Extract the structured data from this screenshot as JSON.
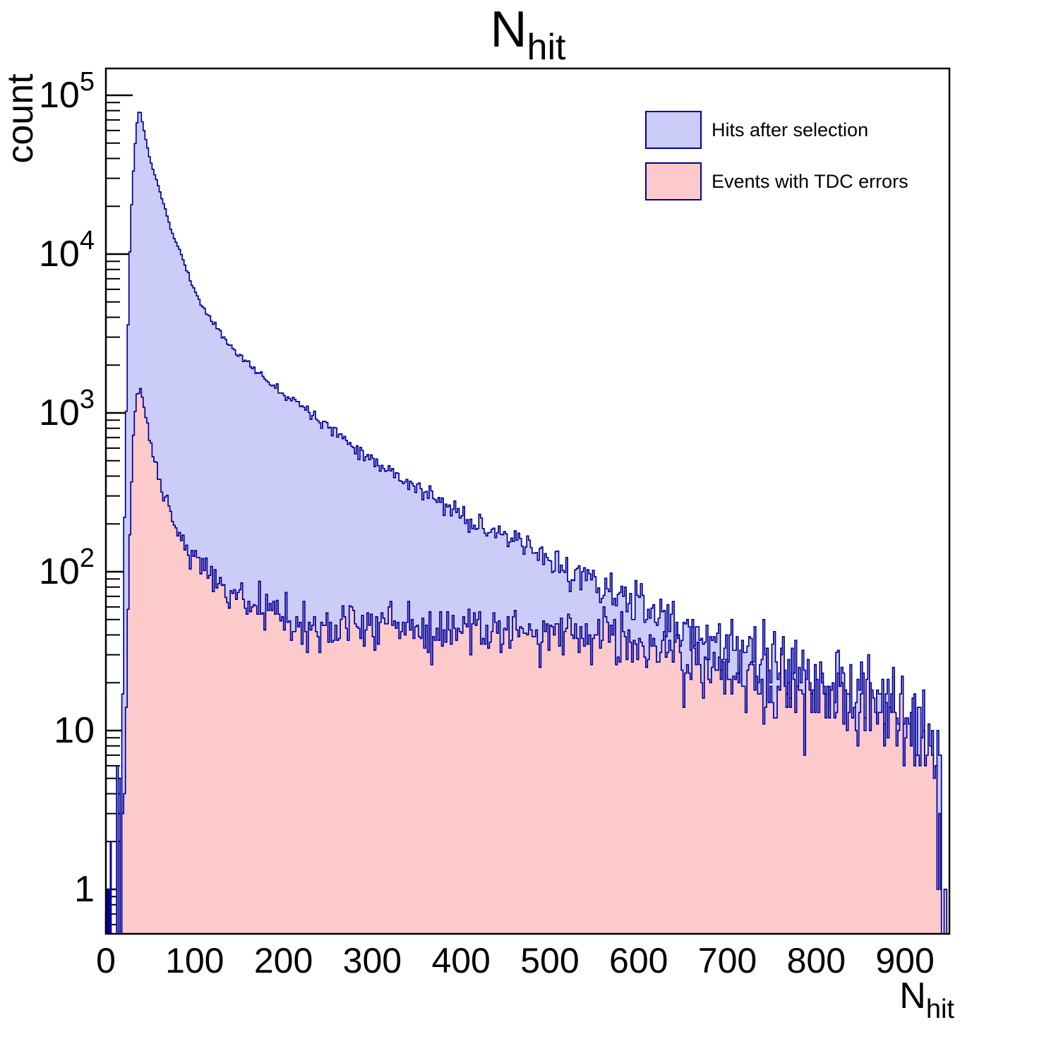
{
  "title": {
    "main": "N",
    "sub": "hit"
  },
  "axes": {
    "x": {
      "title_main": "N",
      "title_sub": "hit",
      "min": 0,
      "max": 950,
      "major_ticks": [
        0,
        100,
        200,
        300,
        400,
        500,
        600,
        700,
        800,
        900
      ]
    },
    "y": {
      "title": "count",
      "scale": "log",
      "min": 0.5,
      "max": 150000,
      "decade_exponents": [
        0,
        1,
        2,
        3,
        4,
        5
      ]
    }
  },
  "legend": {
    "items": [
      {
        "label": "Hits after selection",
        "swatch_color": "#ccccf8",
        "border_color": "#000099"
      },
      {
        "label": "Events with TDC errors",
        "swatch_color": "#fccaca",
        "border_color": "#000099"
      }
    ]
  },
  "colors": {
    "background": "#ffffff",
    "frame": "#000000",
    "hist_line": "#000099",
    "blue_fill": "#ccccf8",
    "pink_fill": "#fccaca"
  },
  "chart_data": {
    "type": "histogram",
    "title": "N_hit",
    "xlabel": "N_hit",
    "ylabel": "count",
    "x_range": [
      0,
      950
    ],
    "y_range": [
      0.5,
      150000
    ],
    "y_log": true,
    "bin_width": 2,
    "series": [
      {
        "name": "Hits after selection",
        "fill": "#ccccf8",
        "line": "#000099",
        "seed": 11,
        "noise_scale": 1.2,
        "pre_bars": [
          [
            1,
            2,
            1
          ],
          [
            3,
            4,
            1
          ],
          [
            5,
            6,
            2
          ],
          [
            12,
            14,
            6
          ],
          [
            16,
            18,
            5
          ]
        ],
        "post_bars": [
          [
            944,
            947,
            1
          ]
        ],
        "envelope": [
          [
            18,
            3
          ],
          [
            19,
            15
          ],
          [
            20,
            60
          ],
          [
            21,
            220
          ],
          [
            22,
            550
          ],
          [
            23,
            1000
          ],
          [
            24,
            1900
          ],
          [
            25,
            3600
          ],
          [
            26,
            7000
          ],
          [
            27,
            10500
          ],
          [
            28,
            15000
          ],
          [
            29,
            20500
          ],
          [
            30,
            26000
          ],
          [
            31,
            33000
          ],
          [
            32,
            41000
          ],
          [
            33,
            50000
          ],
          [
            34,
            59000
          ],
          [
            35,
            67000
          ],
          [
            36,
            74000
          ],
          [
            37,
            78000
          ],
          [
            38,
            79500
          ],
          [
            39,
            77500
          ],
          [
            40,
            73500
          ],
          [
            41,
            68500
          ],
          [
            42,
            64000
          ],
          [
            44,
            56500
          ],
          [
            46,
            49500
          ],
          [
            48,
            43500
          ],
          [
            50,
            39000
          ],
          [
            52,
            35800
          ],
          [
            54,
            33000
          ],
          [
            56,
            30400
          ],
          [
            58,
            28000
          ],
          [
            60,
            25800
          ],
          [
            62,
            23700
          ],
          [
            64,
            21700
          ],
          [
            66,
            19900
          ],
          [
            68,
            18100
          ],
          [
            70,
            16500
          ],
          [
            72,
            15100
          ],
          [
            74,
            13800
          ],
          [
            78,
            12200
          ],
          [
            82,
            11000
          ],
          [
            86,
            9600
          ],
          [
            91,
            7900
          ],
          [
            96,
            6700
          ],
          [
            101,
            5800
          ],
          [
            106,
            5000
          ],
          [
            112,
            4400
          ],
          [
            118,
            3900
          ],
          [
            124,
            3500
          ],
          [
            130,
            3150
          ],
          [
            137,
            2800
          ],
          [
            144,
            2520
          ],
          [
            152,
            2260
          ],
          [
            160,
            2050
          ],
          [
            168,
            1870
          ],
          [
            177,
            1690
          ],
          [
            186,
            1540
          ],
          [
            195,
            1410
          ],
          [
            205,
            1280
          ],
          [
            215,
            1180
          ],
          [
            226,
            1060
          ],
          [
            237,
            950
          ],
          [
            248,
            850
          ],
          [
            259,
            760
          ],
          [
            270,
            680
          ],
          [
            281,
            610
          ],
          [
            292,
            550
          ],
          [
            304,
            495
          ],
          [
            316,
            448
          ],
          [
            328,
            405
          ],
          [
            340,
            368
          ],
          [
            354,
            327
          ],
          [
            368,
            292
          ],
          [
            382,
            262
          ],
          [
            396,
            236
          ],
          [
            410,
            214
          ],
          [
            425,
            192
          ],
          [
            440,
            174
          ],
          [
            456,
            157
          ],
          [
            472,
            142
          ],
          [
            488,
            128
          ],
          [
            504,
            115
          ],
          [
            520,
            103
          ],
          [
            536,
            93
          ],
          [
            552,
            84
          ],
          [
            568,
            76
          ],
          [
            584,
            69
          ],
          [
            600,
            62
          ],
          [
            615,
            55.5
          ],
          [
            630,
            49.5
          ],
          [
            645,
            45
          ],
          [
            660,
            42
          ],
          [
            675,
            38.5
          ],
          [
            690,
            35.5
          ],
          [
            705,
            33
          ],
          [
            720,
            30.5
          ],
          [
            735,
            28
          ],
          [
            750,
            26
          ],
          [
            765,
            24
          ],
          [
            780,
            22.3
          ],
          [
            795,
            20.7
          ],
          [
            810,
            19.2
          ],
          [
            825,
            17.8
          ],
          [
            840,
            16.5
          ],
          [
            855,
            15.2
          ],
          [
            870,
            14
          ],
          [
            885,
            12.9
          ],
          [
            900,
            11.8
          ],
          [
            910,
            11
          ],
          [
            918,
            10
          ],
          [
            924,
            9
          ],
          [
            929,
            8
          ],
          [
            933,
            7
          ],
          [
            936,
            6
          ],
          [
            939,
            4.8
          ],
          [
            941,
            3.6
          ]
        ]
      },
      {
        "name": "Events with TDC errors",
        "fill": "#fccaca",
        "line": "#000099",
        "seed": 97,
        "noise_scale": 1.2,
        "pre_bars": [
          [
            1,
            2,
            1
          ],
          [
            3,
            4,
            1
          ],
          [
            14,
            16,
            2
          ]
        ],
        "post_bars": [
          [
            944,
            947,
            1
          ]
        ],
        "envelope": [
          [
            18,
            1.5
          ],
          [
            20,
            3
          ],
          [
            22,
            8
          ],
          [
            24,
            30
          ],
          [
            26,
            90
          ],
          [
            28,
            260
          ],
          [
            30,
            560
          ],
          [
            32,
            900
          ],
          [
            34,
            1200
          ],
          [
            36,
            1370
          ],
          [
            38,
            1420
          ],
          [
            40,
            1370
          ],
          [
            42,
            1200
          ],
          [
            44,
            1000
          ],
          [
            46,
            860
          ],
          [
            48,
            740
          ],
          [
            50,
            650
          ],
          [
            53,
            540
          ],
          [
            56,
            460
          ],
          [
            60,
            385
          ],
          [
            64,
            325
          ],
          [
            68,
            278
          ],
          [
            72,
            242
          ],
          [
            76,
            214
          ],
          [
            80,
            190
          ],
          [
            85,
            167
          ],
          [
            90,
            149
          ],
          [
            95,
            134
          ],
          [
            100,
            121
          ],
          [
            110,
            102
          ],
          [
            120,
            89
          ],
          [
            130,
            80
          ],
          [
            140,
            73
          ],
          [
            150,
            67
          ],
          [
            160,
            62
          ],
          [
            170,
            58
          ],
          [
            180,
            55
          ],
          [
            190,
            52.5
          ],
          [
            200,
            51
          ],
          [
            215,
            49.5
          ],
          [
            230,
            48.5
          ],
          [
            245,
            48
          ],
          [
            260,
            47.5
          ],
          [
            280,
            47
          ],
          [
            300,
            46.5
          ],
          [
            320,
            46
          ],
          [
            340,
            45.5
          ],
          [
            360,
            45
          ],
          [
            380,
            44.5
          ],
          [
            400,
            44
          ],
          [
            420,
            43.5
          ],
          [
            440,
            43
          ],
          [
            460,
            42.5
          ],
          [
            480,
            42
          ],
          [
            500,
            41.5
          ],
          [
            520,
            41
          ],
          [
            540,
            40
          ],
          [
            560,
            39
          ],
          [
            580,
            37.5
          ],
          [
            600,
            36
          ],
          [
            610,
            34.5
          ],
          [
            620,
            32.5
          ],
          [
            630,
            31
          ],
          [
            640,
            29.8
          ],
          [
            650,
            28.6
          ],
          [
            660,
            27.5
          ],
          [
            675,
            26
          ],
          [
            690,
            24.6
          ],
          [
            705,
            23.4
          ],
          [
            720,
            22.2
          ],
          [
            735,
            21
          ],
          [
            750,
            20
          ],
          [
            765,
            19
          ],
          [
            780,
            18
          ],
          [
            795,
            17
          ],
          [
            810,
            16.2
          ],
          [
            825,
            15.3
          ],
          [
            840,
            14.5
          ],
          [
            855,
            13.6
          ],
          [
            870,
            12.8
          ],
          [
            885,
            11.9
          ],
          [
            900,
            11
          ],
          [
            908,
            10.3
          ],
          [
            915,
            9.5
          ],
          [
            921,
            8.7
          ],
          [
            926,
            7.8
          ],
          [
            930,
            6.8
          ],
          [
            933,
            5.8
          ],
          [
            936,
            4.8
          ],
          [
            938,
            3.8
          ],
          [
            940,
            2.8
          ],
          [
            941,
            2.2
          ]
        ]
      }
    ]
  }
}
